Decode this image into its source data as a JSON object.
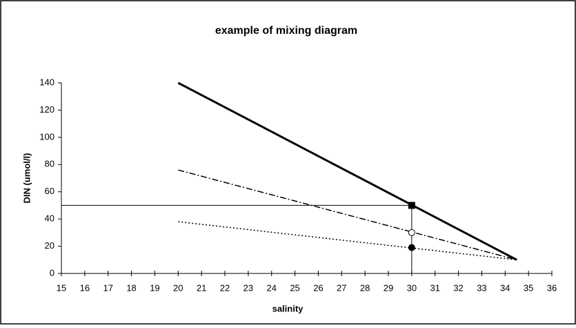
{
  "chart_data": {
    "type": "line",
    "title": "example of mixing diagram",
    "x_label": "salinity",
    "y_label": "DIN  (umol/l)",
    "xlim": [
      15,
      36
    ],
    "xticks": [
      15,
      16,
      17,
      18,
      19,
      20,
      21,
      22,
      23,
      24,
      25,
      26,
      27,
      28,
      29,
      30,
      31,
      32,
      33,
      34,
      35,
      36
    ],
    "ylim": [
      0,
      140
    ],
    "yticks": [
      0,
      20,
      40,
      60,
      80,
      100,
      120,
      140
    ],
    "series": [
      {
        "color": "#000000",
        "style": "solid",
        "x": [
          20,
          34.5
        ],
        "values": [
          140,
          10
        ],
        "points": [
          {
            "x": 30,
            "y": 50,
            "marker": "square"
          }
        ]
      },
      {
        "color": "#000000",
        "style": "dashdot",
        "x": [
          20,
          34.5
        ],
        "values": [
          76,
          10
        ],
        "points": [
          {
            "x": 30,
            "y": 30,
            "marker": "open-circle"
          }
        ]
      },
      {
        "color": "#000000",
        "style": "dotted",
        "x": [
          20,
          34.5
        ],
        "values": [
          38,
          10
        ],
        "points": [
          {
            "x": 30,
            "y": 19,
            "marker": "circle"
          }
        ]
      }
    ],
    "reference": {
      "x": 30,
      "y": 50
    }
  }
}
